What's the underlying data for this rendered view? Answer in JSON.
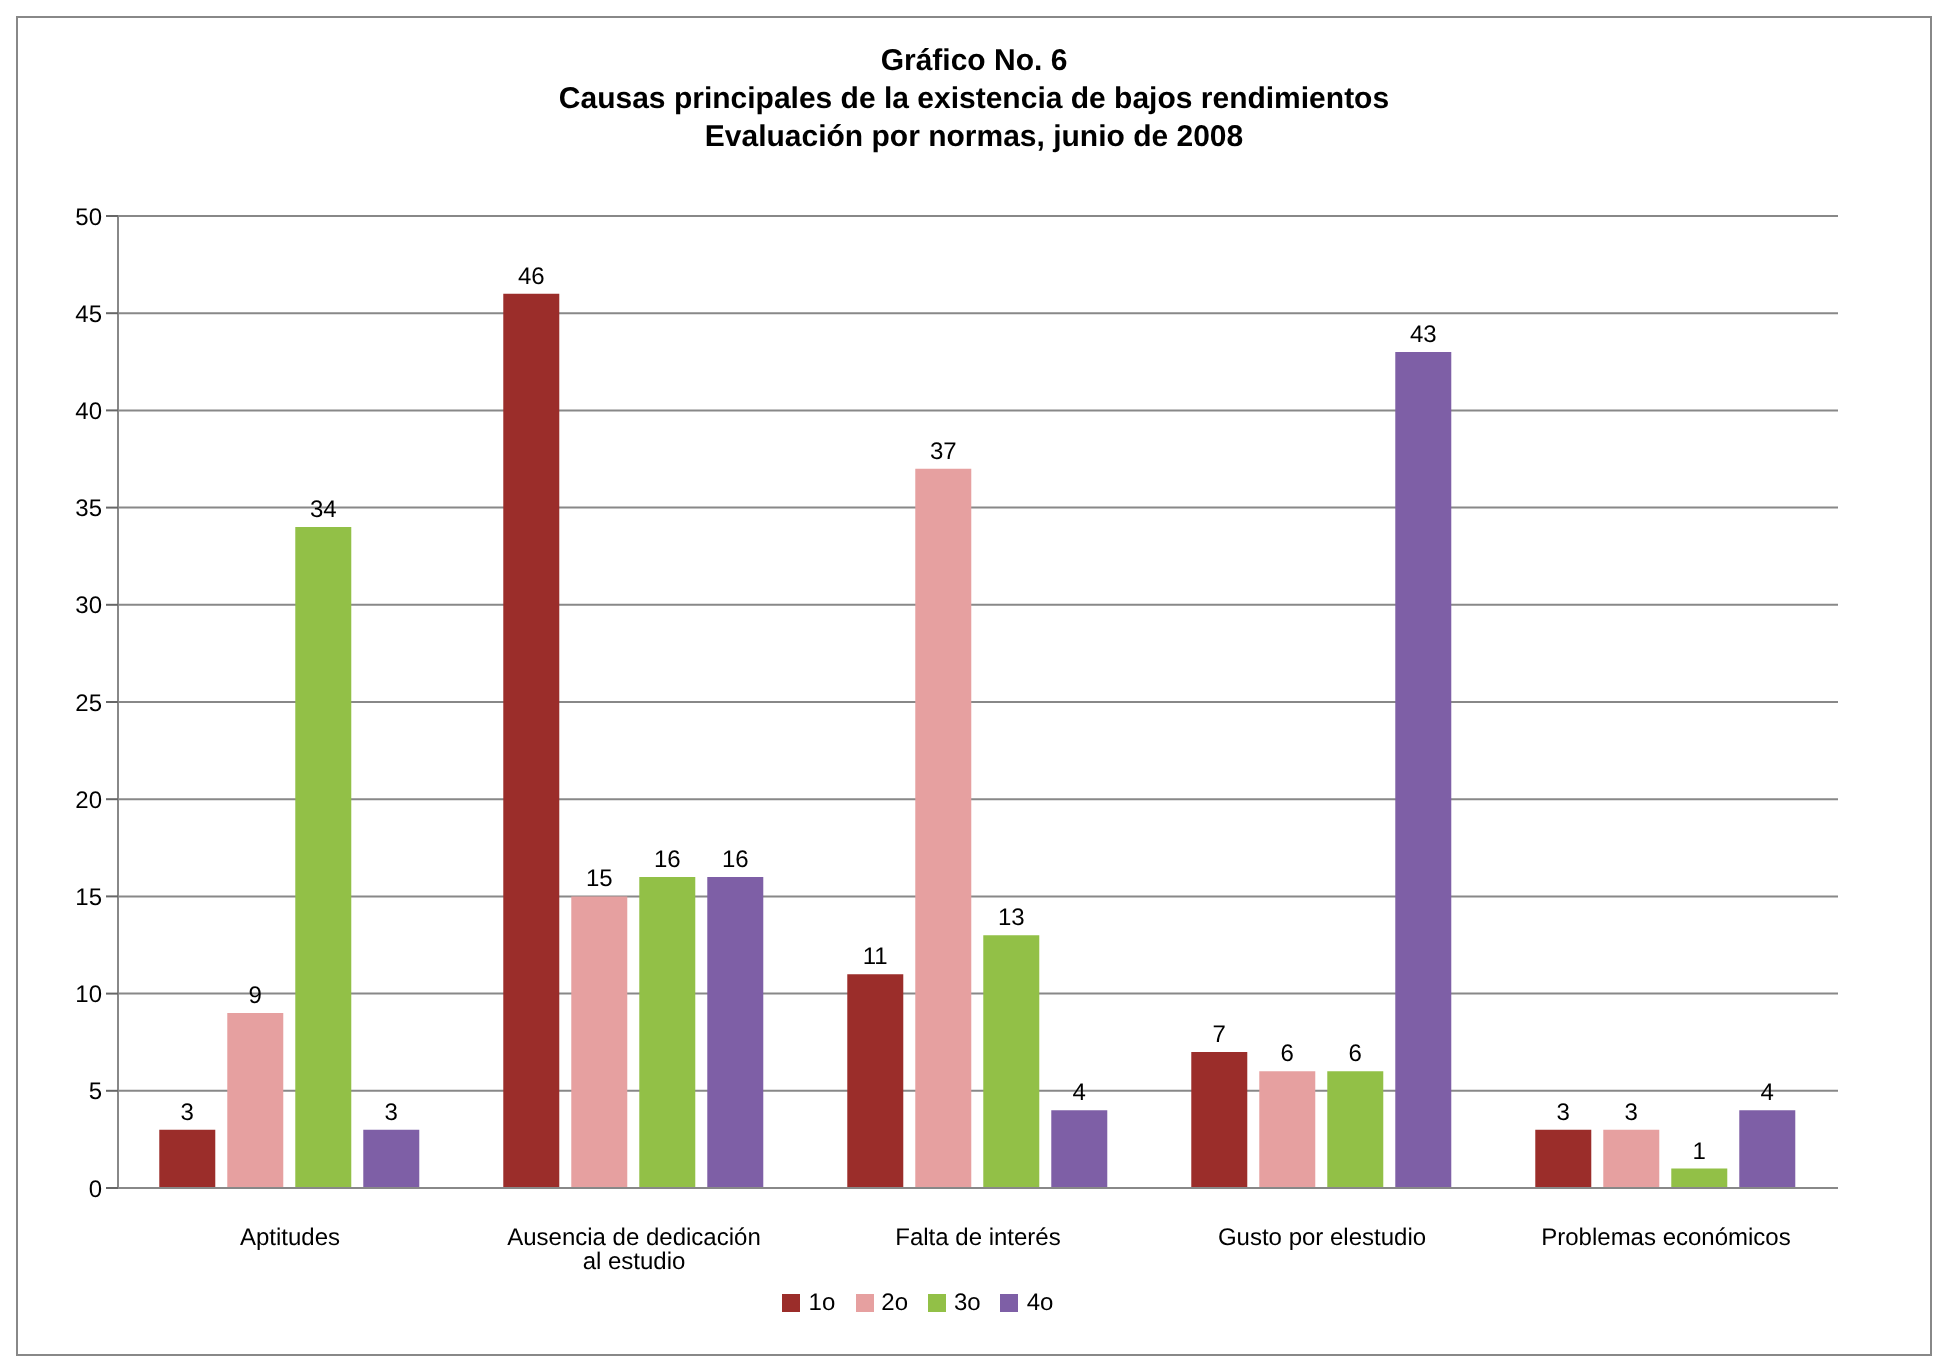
{
  "chart_data": {
    "type": "bar",
    "title": "Gráfico No. 6",
    "subtitle": "Causas principales de la existencia de bajos rendimientos\nEvaluación por normas, junio de 2008",
    "categories": [
      "Aptitudes",
      "Ausencia de dedicación al estudio",
      "Falta de interés",
      "Gusto por elestudio",
      "Problemas económicos"
    ],
    "series": [
      {
        "name": "1o",
        "color": "#9b2d2a",
        "values": [
          3,
          46,
          11,
          7,
          3
        ]
      },
      {
        "name": "2o",
        "color": "#e6a0a0",
        "values": [
          9,
          15,
          37,
          6,
          3
        ]
      },
      {
        "name": "3o",
        "color": "#92c047",
        "values": [
          34,
          16,
          13,
          6,
          1
        ]
      },
      {
        "name": "4o",
        "color": "#7e5fa6",
        "values": [
          3,
          16,
          4,
          43,
          4
        ]
      }
    ],
    "ylim": [
      0,
      50
    ],
    "yticks": [
      0,
      5,
      10,
      15,
      20,
      25,
      30,
      35,
      40,
      45,
      50
    ],
    "grid": "y",
    "legend": "bottom",
    "data_labels": true
  }
}
